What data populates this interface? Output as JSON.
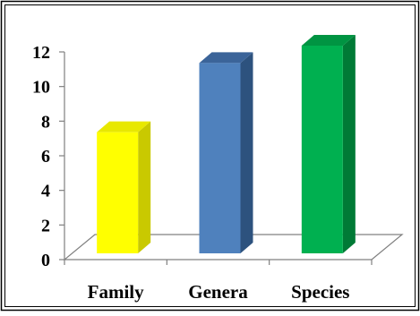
{
  "chart_data": {
    "type": "bar",
    "title": "",
    "xlabel": "",
    "ylabel": "",
    "categories": [
      "Family",
      "Genera",
      "Species"
    ],
    "values": [
      7,
      11,
      12
    ],
    "ylim": [
      0,
      12
    ],
    "yticks": [
      "0",
      "2",
      "4",
      "6",
      "8",
      "10",
      "12"
    ],
    "grid": false,
    "legend": "none",
    "style": "3d-column",
    "colors": {
      "Family": {
        "front": "#FFFF00",
        "side": "#C9C900",
        "top": "#E8E800"
      },
      "Genera": {
        "front": "#4F81BD",
        "side": "#2D527E",
        "top": "#3B6499"
      },
      "Species": {
        "front": "#00B050",
        "side": "#007A36",
        "top": "#009442"
      }
    }
  }
}
